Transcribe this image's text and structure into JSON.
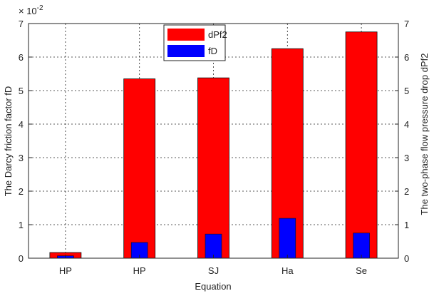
{
  "chart_data": {
    "type": "bar",
    "categories": [
      "HP",
      "HP",
      "SJ",
      "Ha",
      "Se"
    ],
    "xlabel": "Equation",
    "ylabel_left": "The Darcy friction factor  fD",
    "ylabel_right": "The two-phase flow pressure drop  dPf2",
    "left_axis_multiplier": "× 10",
    "left_axis_exponent": "-2",
    "ylim": [
      0,
      7
    ],
    "yticks": [
      0,
      1,
      2,
      3,
      4,
      5,
      6,
      7
    ],
    "grid": true,
    "legend_position": "top-center",
    "series": [
      {
        "name": "dPf2",
        "color": "#ff0000",
        "values": [
          0.17,
          5.35,
          5.38,
          6.25,
          6.75
        ],
        "axis": "right"
      },
      {
        "name": "fD",
        "color": "#0000ff",
        "values": [
          0.07,
          0.47,
          0.72,
          1.19,
          0.75
        ],
        "axis": "left",
        "scale": "x10^-2"
      }
    ]
  }
}
